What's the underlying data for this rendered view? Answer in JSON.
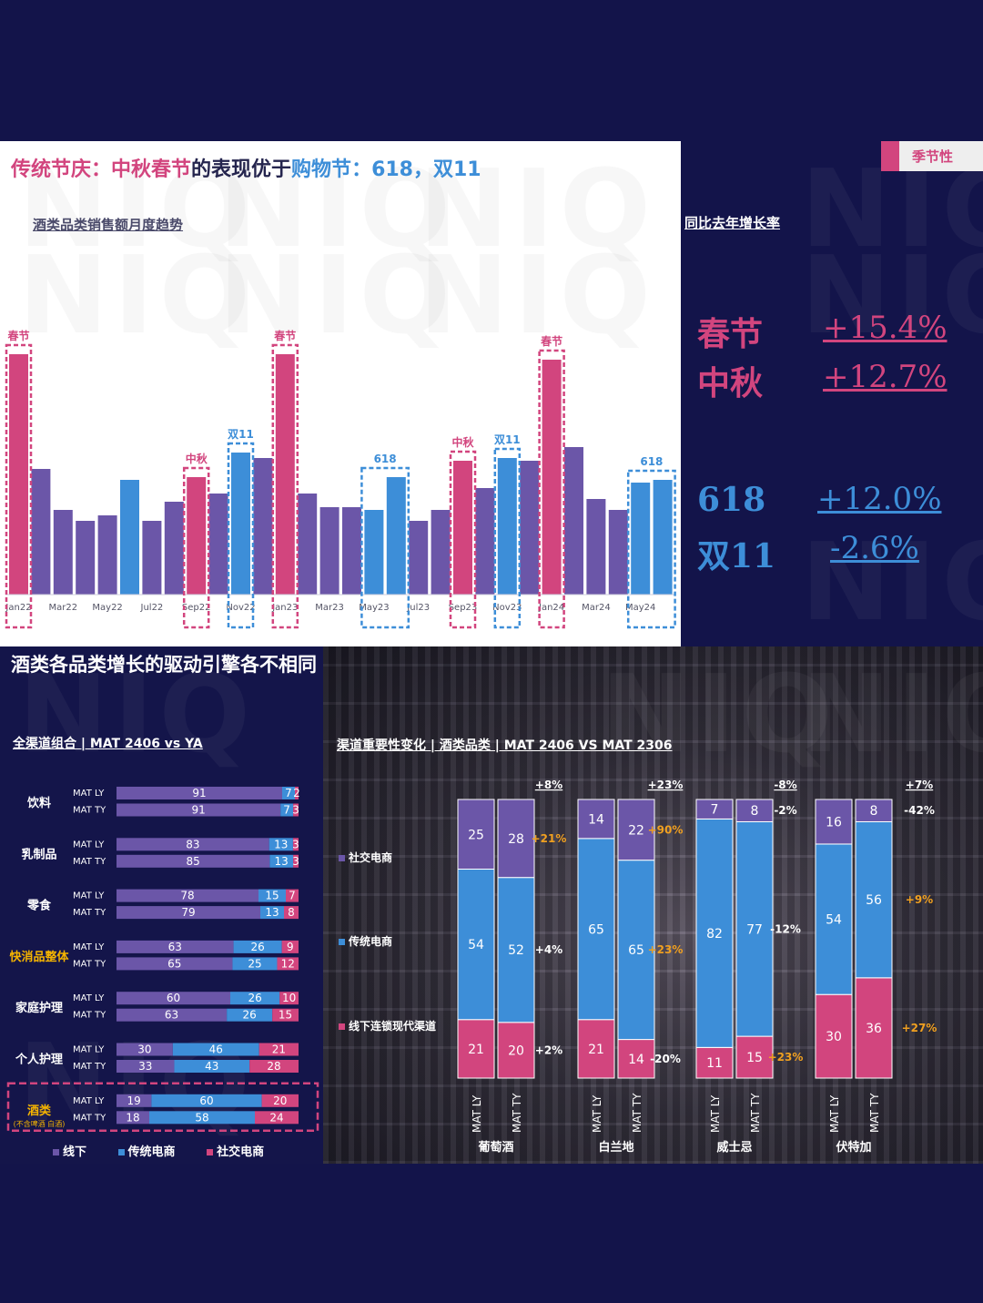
{
  "header": {
    "title_parts": [
      {
        "text": "传统节庆：",
        "color": "#d2457e"
      },
      {
        "text": "中秋春节",
        "color": "#d2457e"
      },
      {
        "text": "的表现优于",
        "color": "#25254e"
      },
      {
        "text": "购物节",
        "color": "#3d8ed8"
      },
      {
        "text": "：618，双11",
        "color": "#3d8ed8"
      }
    ],
    "tag": "季节性",
    "watermark": "NIQ"
  },
  "trend": {
    "subtitle": "酒类品类销售额月度趋势",
    "yoy_title": "同比去年增长率",
    "yoy": [
      {
        "name": "春节",
        "value": "+15.4%",
        "color": "#d2457e"
      },
      {
        "name": "中秋",
        "value": "+12.7%",
        "color": "#d2457e"
      },
      {
        "name": "618",
        "value": "+12.0%",
        "color": "#3d8ed8"
      },
      {
        "name": "双11",
        "value": "-2.6%",
        "color": "#3d8ed8"
      }
    ]
  },
  "section2": {
    "title": "酒类各品类增长的驱动引擎各不相同",
    "left_subtitle": "全渠道组合 | MAT 2406 vs YA",
    "right_subtitle": "渠道重要性变化 | 酒类品类 | MAT 2406 VS MAT 2306",
    "legend": [
      {
        "label": "线下",
        "color": "#6b56a8"
      },
      {
        "label": "传统电商",
        "color": "#3d8ed8"
      },
      {
        "label": "社交电商",
        "color": "#d2457e"
      }
    ],
    "channel_labels": [
      "社交电商",
      "传统电商",
      "线下连锁现代渠道"
    ]
  },
  "colors": {
    "pink": "#d2457e",
    "blue": "#3d8ed8",
    "purple": "#6b56a8",
    "orange": "#f0a020"
  },
  "chart_data": [
    {
      "type": "bar",
      "title": "酒类品类销售额月度趋势",
      "categories": [
        "Jan22",
        "Feb22",
        "Mar22",
        "Apr22",
        "May22",
        "Jun22",
        "Jul22",
        "Aug22",
        "Sep22",
        "Oct22",
        "Nov22",
        "Dec22",
        "Jan23",
        "Feb23",
        "Mar23",
        "Apr23",
        "May23",
        "Jun23",
        "Jul23",
        "Aug23",
        "Sep23",
        "Oct23",
        "Nov23",
        "Dec23",
        "Jan24",
        "Feb24",
        "Mar24",
        "Apr24",
        "May24",
        "Jun24"
      ],
      "tick_labels": [
        "Jan22",
        "Mar22",
        "May22",
        "Jul22",
        "Sep22",
        "Nov22",
        "Jan23",
        "Mar23",
        "May23",
        "Jul23",
        "Sep23",
        "Nov23",
        "Jan24",
        "Mar24",
        "May24"
      ],
      "values": [
        88,
        46,
        31,
        27,
        29,
        42,
        27,
        34,
        43,
        37,
        52,
        50,
        88,
        37,
        32,
        32,
        31,
        43,
        27,
        31,
        49,
        39,
        50,
        49,
        86,
        54,
        35,
        31,
        41,
        42
      ],
      "bar_colors": [
        "pink",
        "purple",
        "purple",
        "purple",
        "purple",
        "blue",
        "purple",
        "purple",
        "pink",
        "purple",
        "blue",
        "purple",
        "pink",
        "purple",
        "purple",
        "purple",
        "blue",
        "blue",
        "purple",
        "purple",
        "pink",
        "purple",
        "blue",
        "purple",
        "pink",
        "purple",
        "purple",
        "purple",
        "blue",
        "blue"
      ],
      "highlights": [
        {
          "label": "春节",
          "start": 0,
          "end": 0,
          "color": "pink"
        },
        {
          "label": "中秋",
          "start": 8,
          "end": 8,
          "color": "pink"
        },
        {
          "label": "双11",
          "start": 10,
          "end": 10,
          "color": "blue"
        },
        {
          "label": "春节",
          "start": 12,
          "end": 12,
          "color": "pink"
        },
        {
          "label": "618",
          "start": 16,
          "end": 17,
          "color": "blue"
        },
        {
          "label": "中秋",
          "start": 20,
          "end": 20,
          "color": "pink"
        },
        {
          "label": "双11",
          "start": 22,
          "end": 22,
          "color": "blue"
        },
        {
          "label": "春节",
          "start": 24,
          "end": 24,
          "color": "pink"
        },
        {
          "label": "618",
          "start": 28,
          "end": 29,
          "color": "blue"
        }
      ],
      "ylim": [
        0,
        100
      ]
    },
    {
      "type": "bar",
      "stacked": true,
      "orientation": "horizontal",
      "title": "全渠道组合 | MAT 2406 vs YA",
      "groups": [
        {
          "label": "饮料",
          "sublabel": "",
          "highlight": false,
          "rows": [
            {
              "label": "MAT LY",
              "values": [
                91,
                7,
                2
              ]
            },
            {
              "label": "MAT TY",
              "values": [
                91,
                7,
                3
              ]
            }
          ]
        },
        {
          "label": "乳制品",
          "sublabel": "",
          "highlight": false,
          "rows": [
            {
              "label": "MAT LY",
              "values": [
                83,
                13,
                3
              ]
            },
            {
              "label": "MAT TY",
              "values": [
                85,
                13,
                3
              ]
            }
          ]
        },
        {
          "label": "零食",
          "sublabel": "",
          "highlight": false,
          "rows": [
            {
              "label": "MAT LY",
              "values": [
                78,
                15,
                7
              ]
            },
            {
              "label": "MAT TY",
              "values": [
                79,
                13,
                8
              ]
            }
          ]
        },
        {
          "label": "快消品整体",
          "sublabel": "",
          "highlight": true,
          "rows": [
            {
              "label": "MAT LY",
              "values": [
                63,
                26,
                9
              ]
            },
            {
              "label": "MAT TY",
              "values": [
                65,
                25,
                12
              ]
            }
          ]
        },
        {
          "label": "家庭护理",
          "sublabel": "",
          "highlight": false,
          "rows": [
            {
              "label": "MAT LY",
              "values": [
                60,
                26,
                10
              ]
            },
            {
              "label": "MAT TY",
              "values": [
                63,
                26,
                15
              ]
            }
          ]
        },
        {
          "label": "个人护理",
          "sublabel": "",
          "highlight": false,
          "rows": [
            {
              "label": "MAT LY",
              "values": [
                30,
                46,
                21
              ]
            },
            {
              "label": "MAT TY",
              "values": [
                33,
                43,
                28
              ]
            }
          ]
        },
        {
          "label": "酒类",
          "sublabel": "(不含啤酒 白酒)",
          "highlight": true,
          "rows": [
            {
              "label": "MAT LY",
              "values": [
                19,
                60,
                20
              ]
            },
            {
              "label": "MAT TY",
              "values": [
                18,
                58,
                24
              ]
            }
          ]
        }
      ],
      "series_names": [
        "线下",
        "传统电商",
        "社交电商"
      ]
    },
    {
      "type": "bar",
      "stacked": true,
      "title": "渠道重要性变化 | 酒类品类 | MAT 2406 VS MAT 2306",
      "series_names": [
        "线下连锁现代渠道",
        "传统电商",
        "社交电商"
      ],
      "categories": [
        {
          "name": "葡萄酒",
          "bars": [
            {
              "label": "MAT LY",
              "values": [
                21,
                54,
                25
              ]
            },
            {
              "label": "MAT TY",
              "values": [
                20,
                52,
                28
              ]
            }
          ],
          "top": {
            "text": "+8%",
            "color": "white"
          },
          "changes": [
            {
              "text": "+21%",
              "color": "orange",
              "at": 2
            },
            {
              "text": "+4%",
              "color": "white",
              "at": 1
            },
            {
              "text": "+2%",
              "color": "white",
              "at": 0
            }
          ]
        },
        {
          "name": "白兰地",
          "bars": [
            {
              "label": "MAT LY",
              "values": [
                21,
                65,
                14
              ]
            },
            {
              "label": "MAT TY",
              "values": [
                14,
                65,
                22
              ]
            }
          ],
          "top": {
            "text": "+23%",
            "color": "white"
          },
          "changes": [
            {
              "text": "+90%",
              "color": "orange",
              "at": 2
            },
            {
              "text": "+23%",
              "color": "orange",
              "at": 1
            },
            {
              "text": "-20%",
              "color": "white",
              "at": 0
            }
          ]
        },
        {
          "name": "威士忌",
          "bars": [
            {
              "label": "MAT LY",
              "values": [
                11,
                82,
                7
              ]
            },
            {
              "label": "MAT TY",
              "values": [
                15,
                77,
                8
              ]
            }
          ],
          "top": {
            "text": "-8%",
            "color": "white"
          },
          "changes": [
            {
              "text": "-2%",
              "color": "white",
              "at": 2
            },
            {
              "text": "-12%",
              "color": "white",
              "at": 1
            },
            {
              "text": "+23%",
              "color": "orange",
              "at": 0
            }
          ]
        },
        {
          "name": "伏特加",
          "bars": [
            {
              "label": "MAT LY",
              "values": [
                30,
                54,
                16
              ]
            },
            {
              "label": "MAT TY",
              "values": [
                36,
                56,
                8
              ]
            }
          ],
          "top": {
            "text": "+7%",
            "color": "white"
          },
          "changes": [
            {
              "text": "-42%",
              "color": "white",
              "at": 2
            },
            {
              "text": "+9%",
              "color": "orange",
              "at": 1
            },
            {
              "text": "+27%",
              "color": "orange",
              "at": 0
            }
          ]
        }
      ]
    }
  ]
}
